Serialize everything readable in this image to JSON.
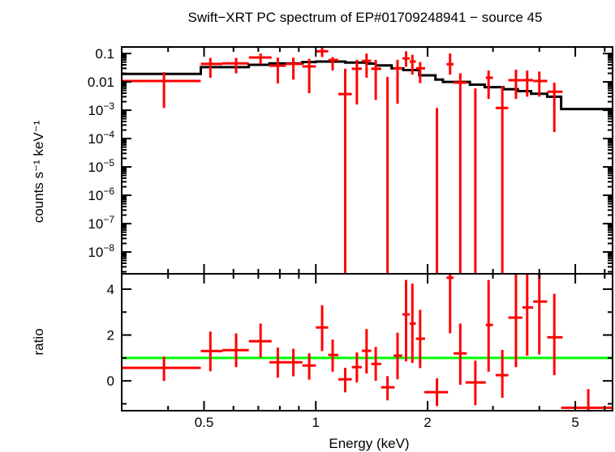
{
  "chart_data": [
    {
      "type": "scatter",
      "panel": "spectrum",
      "title": "Swift−XRT PC spectrum of EP#01709248941 − source 45",
      "ylabel": "counts s⁻¹ keV⁻¹",
      "xlabel": "",
      "xscale": "log",
      "yscale": "log",
      "xlim": [
        0.3,
        6.3
      ],
      "ylim": [
        1.7e-09,
        0.17
      ],
      "grid": false,
      "colors": {
        "data": "#ff0000",
        "model": "#000000"
      },
      "y_ticks": [
        {
          "value": 0.1,
          "label": "0.1"
        },
        {
          "value": 0.01,
          "label": "0.01"
        },
        {
          "value": 0.001,
          "mant": "10",
          "exp": "−3"
        },
        {
          "value": 0.0001,
          "mant": "10",
          "exp": "−4"
        },
        {
          "value": 1e-05,
          "mant": "10",
          "exp": "−5"
        },
        {
          "value": 1e-06,
          "mant": "10",
          "exp": "−6"
        },
        {
          "value": 1e-07,
          "mant": "10",
          "exp": "−7"
        },
        {
          "value": 1e-08,
          "mant": "10",
          "exp": "−8"
        }
      ],
      "data": [
        {
          "e": 0.39,
          "elo": 0.3,
          "ehi": 0.49,
          "y": 0.0107,
          "ylo": 0.0012,
          "yhi": 0.022
        },
        {
          "e": 0.52,
          "elo": 0.49,
          "ehi": 0.56,
          "y": 0.043,
          "ylo": 0.014,
          "yhi": 0.07
        },
        {
          "e": 0.61,
          "elo": 0.56,
          "ehi": 0.66,
          "y": 0.045,
          "ylo": 0.02,
          "yhi": 0.07
        },
        {
          "e": 0.71,
          "elo": 0.66,
          "ehi": 0.76,
          "y": 0.072,
          "ylo": 0.042,
          "yhi": 0.1
        },
        {
          "e": 0.79,
          "elo": 0.75,
          "ehi": 0.83,
          "y": 0.037,
          "ylo": 0.0088,
          "yhi": 0.072
        },
        {
          "e": 0.87,
          "elo": 0.83,
          "ehi": 0.92,
          "y": 0.043,
          "ylo": 0.012,
          "yhi": 0.072
        },
        {
          "e": 0.96,
          "elo": 0.92,
          "ehi": 1.0,
          "y": 0.035,
          "ylo": 0.004,
          "yhi": 0.065
        },
        {
          "e": 1.04,
          "elo": 1.0,
          "ehi": 1.08,
          "y": 0.12,
          "ylo": 0.075,
          "yhi": 0.17
        },
        {
          "e": 1.11,
          "elo": 1.08,
          "ehi": 1.15,
          "y": 0.059,
          "ylo": 0.025,
          "yhi": 0.075
        },
        {
          "e": 1.2,
          "elo": 1.15,
          "ehi": 1.25,
          "y": 0.0037,
          "ylo": null,
          "yhi": 0.029
        },
        {
          "e": 1.29,
          "elo": 1.25,
          "ehi": 1.33,
          "y": 0.029,
          "ylo": 0.0016,
          "yhi": 0.06
        },
        {
          "e": 1.37,
          "elo": 1.33,
          "ehi": 1.41,
          "y": 0.055,
          "ylo": 0.014,
          "yhi": 0.1
        },
        {
          "e": 1.45,
          "elo": 1.41,
          "ehi": 1.5,
          "y": 0.029,
          "ylo": 0.0023,
          "yhi": 0.06
        },
        {
          "e": 1.56,
          "elo": 1.5,
          "ehi": 1.63,
          "y": null,
          "ylo": null,
          "yhi": 0.015
        },
        {
          "e": 1.66,
          "elo": 1.62,
          "ehi": 1.71,
          "y": 0.03,
          "ylo": 0.0017,
          "yhi": 0.06
        },
        {
          "e": 1.75,
          "elo": 1.71,
          "ehi": 1.79,
          "y": 0.067,
          "ylo": 0.034,
          "yhi": 0.12
        },
        {
          "e": 1.82,
          "elo": 1.79,
          "ehi": 1.86,
          "y": 0.052,
          "ylo": 0.018,
          "yhi": 0.09
        },
        {
          "e": 1.91,
          "elo": 1.86,
          "ehi": 1.97,
          "y": 0.03,
          "ylo": 0.009,
          "yhi": 0.05
        },
        {
          "e": 2.12,
          "elo": 1.96,
          "ehi": 2.27,
          "y": null,
          "ylo": null,
          "yhi": 0.0012
        },
        {
          "e": 2.3,
          "elo": 2.25,
          "ehi": 2.35,
          "y": 0.042,
          "ylo": 0.018,
          "yhi": 0.1
        },
        {
          "e": 2.45,
          "elo": 2.35,
          "ehi": 2.55,
          "y": 0.0094,
          "ylo": null,
          "yhi": 0.02
        },
        {
          "e": 2.69,
          "elo": 2.53,
          "ehi": 2.87,
          "y": null,
          "ylo": null,
          "yhi": 0.0059
        },
        {
          "e": 2.92,
          "elo": 2.87,
          "ehi": 3.0,
          "y": 0.014,
          "ylo": 0.0025,
          "yhi": 0.025
        },
        {
          "e": 3.18,
          "elo": 3.05,
          "ehi": 3.3,
          "y": 0.0012,
          "ylo": null,
          "yhi": 0.007
        },
        {
          "e": 3.46,
          "elo": 3.3,
          "ehi": 3.6,
          "y": 0.0115,
          "ylo": 0.0025,
          "yhi": 0.027
        },
        {
          "e": 3.71,
          "elo": 3.6,
          "ehi": 3.85,
          "y": 0.0115,
          "ylo": 0.003,
          "yhi": 0.025
        },
        {
          "e": 4.0,
          "elo": 3.85,
          "ehi": 4.2,
          "y": 0.0107,
          "ylo": 0.003,
          "yhi": 0.023
        },
        {
          "e": 4.39,
          "elo": 4.2,
          "ehi": 4.62,
          "y": 0.0045,
          "ylo": 0.00017,
          "yhi": 0.0094
        }
      ],
      "model_steps": [
        {
          "elo": 0.3,
          "ehi": 0.49,
          "y": 0.019
        },
        {
          "elo": 0.49,
          "ehi": 0.66,
          "y": 0.033
        },
        {
          "elo": 0.66,
          "ehi": 0.75,
          "y": 0.04
        },
        {
          "elo": 0.75,
          "ehi": 0.92,
          "y": 0.045
        },
        {
          "elo": 0.92,
          "ehi": 1.0,
          "y": 0.05
        },
        {
          "elo": 1.0,
          "ehi": 1.2,
          "y": 0.052
        },
        {
          "elo": 1.2,
          "ehi": 1.37,
          "y": 0.048
        },
        {
          "elo": 1.37,
          "ehi": 1.45,
          "y": 0.044
        },
        {
          "elo": 1.45,
          "ehi": 1.6,
          "y": 0.038
        },
        {
          "elo": 1.6,
          "ehi": 1.72,
          "y": 0.03
        },
        {
          "elo": 1.72,
          "ehi": 1.9,
          "y": 0.026
        },
        {
          "elo": 1.9,
          "ehi": 2.1,
          "y": 0.017
        },
        {
          "elo": 2.1,
          "ehi": 2.2,
          "y": 0.012
        },
        {
          "elo": 2.2,
          "ehi": 2.6,
          "y": 0.01
        },
        {
          "elo": 2.6,
          "ehi": 2.85,
          "y": 0.008
        },
        {
          "elo": 2.85,
          "ehi": 3.2,
          "y": 0.0065
        },
        {
          "elo": 3.2,
          "ehi": 3.5,
          "y": 0.0055
        },
        {
          "elo": 3.5,
          "ehi": 3.8,
          "y": 0.0047
        },
        {
          "elo": 3.8,
          "ehi": 4.2,
          "y": 0.0038
        },
        {
          "elo": 4.2,
          "ehi": 4.58,
          "y": 0.003
        },
        {
          "elo": 4.58,
          "ehi": 6.3,
          "y": 0.0011
        }
      ]
    },
    {
      "type": "scatter",
      "panel": "ratio",
      "ylabel": "ratio",
      "xlabel": "Energy (keV)",
      "xscale": "log",
      "yscale": "linear",
      "xlim": [
        0.3,
        6.3
      ],
      "ylim": [
        -1.3,
        4.67
      ],
      "grid": false,
      "reference_line": {
        "y": 1,
        "color": "#00ff00"
      },
      "colors": {
        "data": "#ff0000"
      },
      "x_ticks": [
        {
          "value": 0.5,
          "label": "0.5"
        },
        {
          "value": 1,
          "label": "1"
        },
        {
          "value": 2,
          "label": "2"
        },
        {
          "value": 5,
          "label": "5"
        }
      ],
      "x_minor_ticks": [
        0.4,
        0.6,
        0.7,
        0.8,
        0.9,
        3,
        4,
        6
      ],
      "y_ticks": [
        {
          "value": 0,
          "label": "0"
        },
        {
          "value": 2,
          "label": "2"
        },
        {
          "value": 4,
          "label": "4"
        }
      ],
      "y_minor_ticks": [
        -1,
        1,
        3
      ],
      "data": [
        {
          "e": 0.39,
          "elo": 0.3,
          "ehi": 0.49,
          "r": 0.57,
          "rlo": 0.0,
          "rhi": 1.06
        },
        {
          "e": 0.52,
          "elo": 0.49,
          "ehi": 0.56,
          "r": 1.3,
          "rlo": 0.42,
          "rhi": 2.15
        },
        {
          "e": 0.61,
          "elo": 0.56,
          "ehi": 0.66,
          "r": 1.34,
          "rlo": 0.6,
          "rhi": 2.07
        },
        {
          "e": 0.71,
          "elo": 0.66,
          "ehi": 0.76,
          "r": 1.73,
          "rlo": 1.02,
          "rhi": 2.5
        },
        {
          "e": 0.79,
          "elo": 0.75,
          "ehi": 0.83,
          "r": 0.81,
          "rlo": 0.14,
          "rhi": 1.45
        },
        {
          "e": 0.87,
          "elo": 0.83,
          "ehi": 0.92,
          "r": 0.81,
          "rlo": 0.2,
          "rhi": 1.4
        },
        {
          "e": 0.96,
          "elo": 0.92,
          "ehi": 1.0,
          "r": 0.67,
          "rlo": 0.05,
          "rhi": 1.2
        },
        {
          "e": 1.04,
          "elo": 1.0,
          "ehi": 1.08,
          "r": 2.33,
          "rlo": 1.3,
          "rhi": 3.3
        },
        {
          "e": 1.11,
          "elo": 1.08,
          "ehi": 1.15,
          "r": 1.13,
          "rlo": 0.4,
          "rhi": 1.8
        },
        {
          "e": 1.2,
          "elo": 1.15,
          "ehi": 1.25,
          "r": 0.07,
          "rlo": -0.5,
          "rhi": 0.57
        },
        {
          "e": 1.29,
          "elo": 1.25,
          "ehi": 1.33,
          "r": 0.6,
          "rlo": -0.07,
          "rhi": 1.24
        },
        {
          "e": 1.37,
          "elo": 1.33,
          "ehi": 1.41,
          "r": 1.31,
          "rlo": 0.32,
          "rhi": 2.26
        },
        {
          "e": 1.45,
          "elo": 1.41,
          "ehi": 1.5,
          "r": 0.74,
          "rlo": 0.0,
          "rhi": 1.48
        },
        {
          "e": 1.56,
          "elo": 1.5,
          "ehi": 1.63,
          "r": -0.28,
          "rlo": -0.85,
          "rhi": 0.21
        },
        {
          "e": 1.66,
          "elo": 1.62,
          "ehi": 1.71,
          "r": 1.1,
          "rlo": 0.07,
          "rhi": 2.1
        },
        {
          "e": 1.75,
          "elo": 1.71,
          "ehi": 1.79,
          "r": 2.9,
          "rlo": 0.85,
          "rhi": 4.4
        },
        {
          "e": 1.82,
          "elo": 1.79,
          "ehi": 1.86,
          "r": 2.5,
          "rlo": 0.78,
          "rhi": 4.24
        },
        {
          "e": 1.91,
          "elo": 1.86,
          "ehi": 1.97,
          "r": 1.84,
          "rlo": 0.56,
          "rhi": 3.1
        },
        {
          "e": 2.12,
          "elo": 1.96,
          "ehi": 2.27,
          "r": -0.49,
          "rlo": -1.1,
          "rhi": 0.11
        },
        {
          "e": 2.3,
          "elo": 2.25,
          "ehi": 2.35,
          "r": 4.5,
          "rlo": 2.08,
          "rhi": 4.67
        },
        {
          "e": 2.45,
          "elo": 2.35,
          "ehi": 2.55,
          "r": 1.2,
          "rlo": -0.17,
          "rhi": 2.5
        },
        {
          "e": 2.69,
          "elo": 2.53,
          "ehi": 2.87,
          "r": -0.07,
          "rlo": -1.06,
          "rhi": 0.88
        },
        {
          "e": 2.92,
          "elo": 2.87,
          "ehi": 3.0,
          "r": 2.44,
          "rlo": 0.4,
          "rhi": 4.4
        },
        {
          "e": 3.18,
          "elo": 3.05,
          "ehi": 3.3,
          "r": 0.25,
          "rlo": -0.74,
          "rhi": 1.35
        },
        {
          "e": 3.46,
          "elo": 3.3,
          "ehi": 3.6,
          "r": 2.76,
          "rlo": 0.6,
          "rhi": 4.67
        },
        {
          "e": 3.71,
          "elo": 3.6,
          "ehi": 3.85,
          "r": 3.2,
          "rlo": 1.1,
          "rhi": 4.67
        },
        {
          "e": 4.0,
          "elo": 3.85,
          "ehi": 4.2,
          "r": 3.46,
          "rlo": 1.15,
          "rhi": 4.67
        },
        {
          "e": 4.39,
          "elo": 4.2,
          "ehi": 4.62,
          "r": 1.9,
          "rlo": 0.25,
          "rhi": 3.8
        },
        {
          "e": 5.42,
          "elo": 4.58,
          "ehi": 6.3,
          "r": -1.17,
          "rlo": -1.3,
          "rhi": -0.36
        }
      ]
    }
  ]
}
